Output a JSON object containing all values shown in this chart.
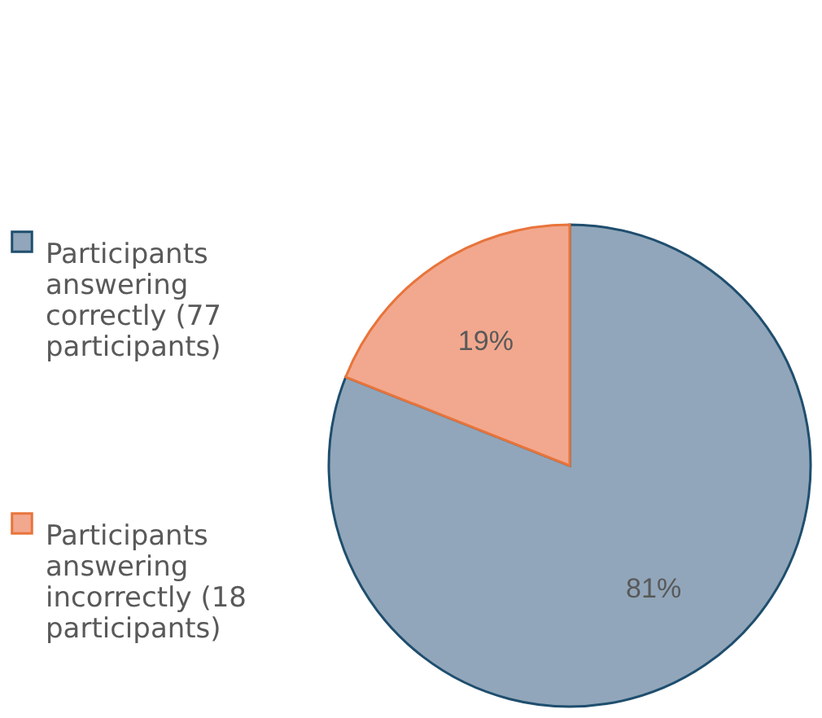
{
  "chart_data": {
    "type": "pie",
    "categories": [
      "Participants answering correctly (77 participants)",
      "Participants answering incorrectly (18 participants)"
    ],
    "values": [
      81,
      19
    ],
    "value_labels": [
      "81%",
      "19%"
    ],
    "colors": [
      "#91a6ba",
      "#f2a88e"
    ],
    "legend": "left"
  }
}
